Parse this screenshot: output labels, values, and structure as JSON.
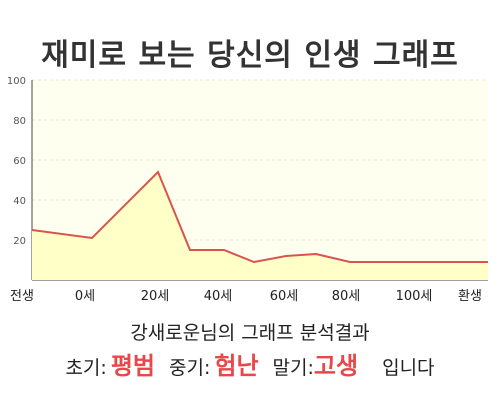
{
  "title": "재미로 보는 당신의 인생 그래프",
  "chart_data": {
    "type": "area",
    "ylim": [
      0,
      100
    ],
    "yticks": [
      20,
      40,
      60,
      80,
      100
    ],
    "x_tick_labels": [
      "전생",
      "0세",
      "20세",
      "40세",
      "60세",
      "80세",
      "100세",
      "환생"
    ],
    "x": [
      "전생",
      "0세",
      "20세",
      "30세",
      "40세",
      "50세",
      "60세",
      "70세",
      "80세",
      "100세",
      "환생"
    ],
    "values": [
      25,
      21,
      54,
      15,
      15,
      9,
      12,
      13,
      9,
      9,
      9
    ],
    "grid": true,
    "line_color": "#d9534f",
    "fill_color": "#ffffc8",
    "plot_bg": "#fffff0"
  },
  "result": {
    "title": "강새로운님의 그래프 분석결과",
    "early_label": "초기:",
    "early_value": "평범",
    "middle_label": "중기:",
    "middle_value": "험난",
    "late_label": "말기:",
    "late_value": "고생",
    "suffix": "입니다",
    "highlight_color": "#e8484a"
  }
}
